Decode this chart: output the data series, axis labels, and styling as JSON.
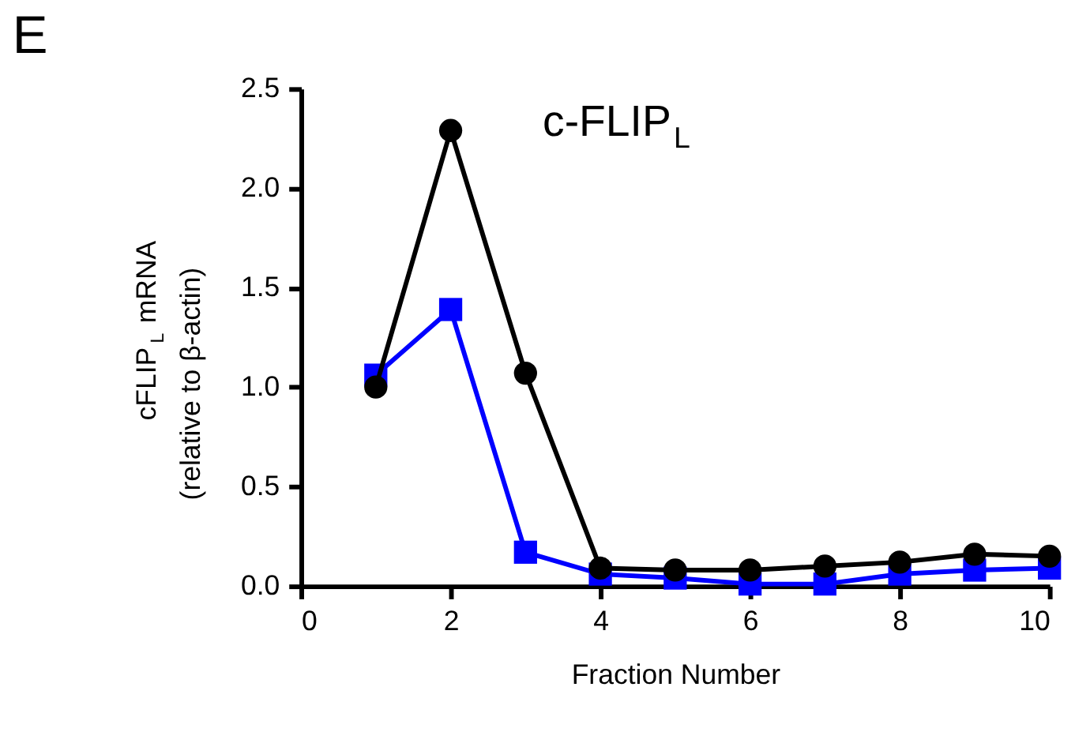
{
  "chart_data": {
    "type": "line",
    "title": "c-FLIP$_{L}$",
    "xlabel": "Fraction Number",
    "ylabel": "cFLIP$_{L}$ mRNA\n(relative to β-actin)",
    "annotations": [
      "E"
    ],
    "x": [
      1,
      2,
      3,
      4,
      5,
      6,
      7,
      8,
      9,
      10
    ],
    "series": [
      {
        "color": "#000000",
        "marker": "circle",
        "values": [
          1.0,
          2.29,
          1.07,
          0.09,
          0.08,
          0.08,
          0.1,
          0.12,
          0.16,
          0.15
        ]
      },
      {
        "color": "#0000ff",
        "marker": "square",
        "values": [
          1.06,
          1.39,
          0.17,
          0.06,
          0.04,
          0.01,
          0.01,
          0.06,
          0.08,
          0.09
        ]
      }
    ],
    "xlim": [
      0,
      10
    ],
    "xticks": [
      0,
      2,
      4,
      6,
      8,
      10
    ],
    "ylim": [
      0,
      2.5
    ],
    "yticks": [
      {
        "value": 0,
        "label": "0.0"
      },
      0.5,
      {
        "value": 1,
        "label": "1.0"
      },
      1.5,
      {
        "value": 2,
        "label": "2.0"
      },
      2.5
    ],
    "grid": false,
    "line_style": "solid"
  }
}
